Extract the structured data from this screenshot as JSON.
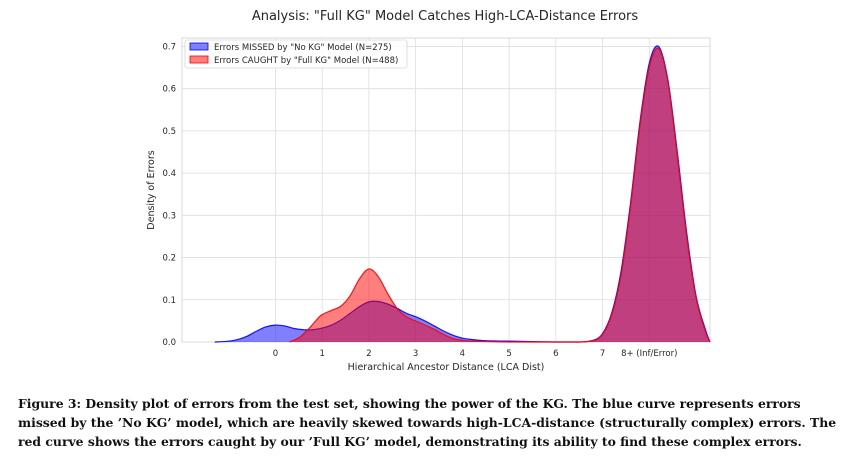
{
  "chart_data": {
    "type": "area",
    "title": "Analysis: \"Full KG\" Model Catches High-LCA-Distance Errors",
    "xlabel": "Hierarchical Ancestor Distance (LCA Dist)",
    "ylabel": "Density of Errors",
    "xlim": [
      -2,
      9.3
    ],
    "ylim": [
      0,
      0.72
    ],
    "x_ticks": [
      0,
      1,
      2,
      3,
      4,
      5,
      6,
      7,
      8
    ],
    "x_tick_labels": [
      "0",
      "1",
      "2",
      "3",
      "4",
      "5",
      "6",
      "7",
      "8+ (Inf/Error)"
    ],
    "y_ticks": [
      0.0,
      0.1,
      0.2,
      0.3,
      0.4,
      0.5,
      0.6,
      0.7
    ],
    "y_tick_labels": [
      "0.0",
      "0.1",
      "0.2",
      "0.3",
      "0.4",
      "0.5",
      "0.6",
      "0.7"
    ],
    "grid": true,
    "legend_position": "top-left",
    "series": [
      {
        "name": "Errors MISSED by \"No KG\" Model (N=275)",
        "color": "#0000ff",
        "x": [
          -1.3,
          -1.0,
          -0.8,
          -0.6,
          -0.4,
          -0.2,
          0,
          0.2,
          0.4,
          0.6,
          0.8,
          1.0,
          1.2,
          1.4,
          1.6,
          1.8,
          2.0,
          2.2,
          2.4,
          2.6,
          2.8,
          3.0,
          3.2,
          3.4,
          3.6,
          3.8,
          4.0,
          4.2,
          4.5,
          5.0,
          5.5,
          6.0,
          6.5,
          6.8,
          7.0,
          7.2,
          7.4,
          7.6,
          7.8,
          8.0,
          8.2,
          8.4,
          8.6,
          8.8,
          9.0,
          9.2,
          9.3
        ],
        "y": [
          0.0,
          0.002,
          0.006,
          0.014,
          0.026,
          0.036,
          0.04,
          0.038,
          0.032,
          0.029,
          0.029,
          0.033,
          0.04,
          0.052,
          0.068,
          0.084,
          0.095,
          0.096,
          0.09,
          0.08,
          0.068,
          0.06,
          0.05,
          0.038,
          0.026,
          0.016,
          0.009,
          0.006,
          0.003,
          0.002,
          0.001,
          0.0,
          0.0,
          0.004,
          0.02,
          0.07,
          0.17,
          0.33,
          0.52,
          0.66,
          0.7,
          0.62,
          0.45,
          0.26,
          0.11,
          0.03,
          0.0
        ]
      },
      {
        "name": "Errors CAUGHT by \"Full KG\" Model (N=488)",
        "color": "#ff0000",
        "x": [
          0.3,
          0.5,
          0.7,
          0.9,
          1.0,
          1.2,
          1.4,
          1.6,
          1.8,
          2.0,
          2.2,
          2.4,
          2.6,
          2.8,
          3.0,
          3.2,
          3.4,
          3.6,
          3.8,
          4.0,
          4.2,
          4.5,
          5.0,
          5.5,
          6.0,
          6.5,
          6.8,
          7.0,
          7.2,
          7.4,
          7.6,
          7.8,
          8.0,
          8.2,
          8.4,
          8.6,
          8.8,
          9.0,
          9.2,
          9.3
        ],
        "y": [
          0.0,
          0.01,
          0.03,
          0.055,
          0.065,
          0.075,
          0.085,
          0.11,
          0.15,
          0.173,
          0.155,
          0.115,
          0.08,
          0.06,
          0.05,
          0.04,
          0.03,
          0.018,
          0.008,
          0.004,
          0.002,
          0.001,
          0.0,
          0.0,
          0.0,
          0.0,
          0.003,
          0.018,
          0.065,
          0.16,
          0.32,
          0.51,
          0.65,
          0.695,
          0.615,
          0.44,
          0.25,
          0.105,
          0.025,
          0.0
        ]
      }
    ]
  },
  "caption": "Figure 3: Density plot of errors from the test set, showing the power of the KG. The blue curve represents errors missed by the ’No KG’ model, which are heavily skewed towards high-LCA-distance (structurally complex) errors. The red curve shows the errors caught by our ’Full KG’ model, demonstrating its ability to find these complex errors."
}
